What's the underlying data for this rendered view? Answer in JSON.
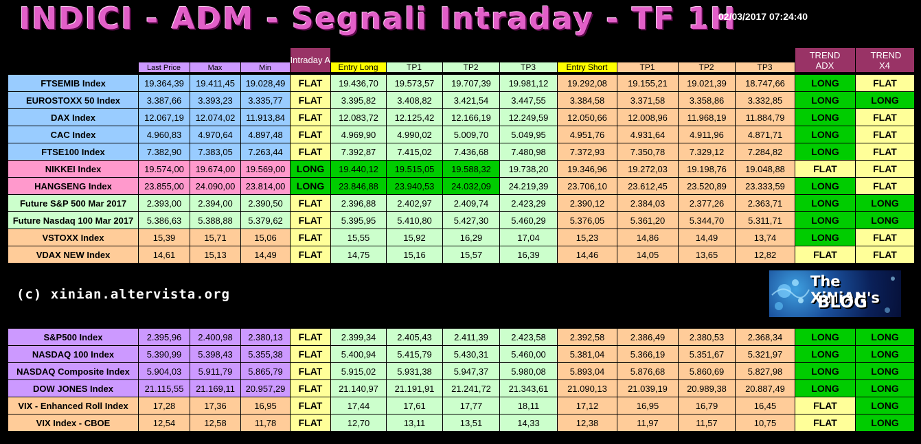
{
  "title": "INDICI - ADM - Segnali Intraday - TF 1H",
  "datetime": "02/03/2017 07:24:40",
  "credit": "(c) xinian.altervista.org",
  "logo": {
    "line1": "The XiNiAN's",
    "line2": "BLOG"
  },
  "headers": {
    "last_price": "Last Price",
    "max": "Max",
    "min": "Min",
    "intraday_adm": "Intraday ADM",
    "entry_long": "Entry Long",
    "tp1_long": "TP1",
    "tp2_long": "TP2",
    "tp3_long": "TP3",
    "entry_short": "Entry Short",
    "tp1_short": "TP1",
    "tp2_short": "TP2",
    "tp3_short": "TP3",
    "trend_adx": "TREND ADX",
    "trend_x4": "TREND X4"
  },
  "colors": {
    "blue": "#99ccff",
    "pink": "#ff99cc",
    "green_light": "#ccffcc",
    "orange": "#ffcc99",
    "purple": "#cc99ff",
    "flat_yellow": "#ffff99",
    "long_green": "#00cc00",
    "header_maroon": "#993366",
    "header_yellow": "#ffff00"
  },
  "table1": [
    {
      "name": "FTSEMIB Index",
      "cat": "blue",
      "last": "19.364,39",
      "max": "19.411,45",
      "min": "19.028,49",
      "adm": "FLAT",
      "el": "19.436,70",
      "ltp1": "19.573,57",
      "ltp2": "19.707,39",
      "ltp3": "19.981,12",
      "es": "19.292,08",
      "stp1": "19.155,21",
      "stp2": "19.021,39",
      "stp3": "18.747,66",
      "adx": "LONG",
      "x4": "FLAT"
    },
    {
      "name": "EUROSTOXX 50 Index",
      "cat": "blue",
      "last": "3.387,66",
      "max": "3.393,23",
      "min": "3.335,77",
      "adm": "FLAT",
      "el": "3.395,82",
      "ltp1": "3.408,82",
      "ltp2": "3.421,54",
      "ltp3": "3.447,55",
      "es": "3.384,58",
      "stp1": "3.371,58",
      "stp2": "3.358,86",
      "stp3": "3.332,85",
      "adx": "LONG",
      "x4": "LONG"
    },
    {
      "name": "DAX Index",
      "cat": "blue",
      "last": "12.067,19",
      "max": "12.074,02",
      "min": "11.913,84",
      "adm": "FLAT",
      "el": "12.083,72",
      "ltp1": "12.125,42",
      "ltp2": "12.166,19",
      "ltp3": "12.249,59",
      "es": "12.050,66",
      "stp1": "12.008,96",
      "stp2": "11.968,19",
      "stp3": "11.884,79",
      "adx": "LONG",
      "x4": "FLAT"
    },
    {
      "name": "CAC Index",
      "cat": "blue",
      "last": "4.960,83",
      "max": "4.970,64",
      "min": "4.897,48",
      "adm": "FLAT",
      "el": "4.969,90",
      "ltp1": "4.990,02",
      "ltp2": "5.009,70",
      "ltp3": "5.049,95",
      "es": "4.951,76",
      "stp1": "4.931,64",
      "stp2": "4.911,96",
      "stp3": "4.871,71",
      "adx": "LONG",
      "x4": "FLAT"
    },
    {
      "name": "FTSE100 Index",
      "cat": "blue",
      "last": "7.382,90",
      "max": "7.383,05",
      "min": "7.263,44",
      "adm": "FLAT",
      "el": "7.392,87",
      "ltp1": "7.415,02",
      "ltp2": "7.436,68",
      "ltp3": "7.480,98",
      "es": "7.372,93",
      "stp1": "7.350,78",
      "stp2": "7.329,12",
      "stp3": "7.284,82",
      "adx": "LONG",
      "x4": "FLAT"
    },
    {
      "name": "NIKKEI Index",
      "cat": "pink",
      "last": "19.574,00",
      "max": "19.674,00",
      "min": "19.569,00",
      "adm": "LONG",
      "el": "19.440,12",
      "ltp1": "19.515,05",
      "ltp2": "19.588,32",
      "ltp3": "19.738,20",
      "es": "19.346,96",
      "stp1": "19.272,03",
      "stp2": "19.198,76",
      "stp3": "19.048,88",
      "adx": "FLAT",
      "x4": "FLAT",
      "hl": [
        0,
        1,
        2
      ]
    },
    {
      "name": "HANGSENG Index",
      "cat": "pink",
      "last": "23.855,00",
      "max": "24.090,00",
      "min": "23.814,00",
      "adm": "LONG",
      "el": "23.846,88",
      "ltp1": "23.940,53",
      "ltp2": "24.032,09",
      "ltp3": "24.219,39",
      "es": "23.706,10",
      "stp1": "23.612,45",
      "stp2": "23.520,89",
      "stp3": "23.333,59",
      "adx": "LONG",
      "x4": "FLAT",
      "hl": [
        0,
        1,
        2
      ]
    },
    {
      "name": "Future S&P 500 Mar 2017",
      "cat": "green_light",
      "last": "2.393,00",
      "max": "2.394,00",
      "min": "2.390,50",
      "adm": "FLAT",
      "el": "2.396,88",
      "ltp1": "2.402,97",
      "ltp2": "2.409,74",
      "ltp3": "2.423,29",
      "es": "2.390,12",
      "stp1": "2.384,03",
      "stp2": "2.377,26",
      "stp3": "2.363,71",
      "adx": "LONG",
      "x4": "LONG"
    },
    {
      "name": "Future Nasdaq 100 Mar 2017",
      "cat": "green_light",
      "last": "5.386,63",
      "max": "5.388,88",
      "min": "5.379,62",
      "adm": "FLAT",
      "el": "5.395,95",
      "ltp1": "5.410,80",
      "ltp2": "5.427,30",
      "ltp3": "5.460,29",
      "es": "5.376,05",
      "stp1": "5.361,20",
      "stp2": "5.344,70",
      "stp3": "5.311,71",
      "adx": "LONG",
      "x4": "LONG"
    },
    {
      "name": "VSTOXX Index",
      "cat": "orange",
      "last": "15,39",
      "max": "15,71",
      "min": "15,06",
      "adm": "FLAT",
      "el": "15,55",
      "ltp1": "15,92",
      "ltp2": "16,29",
      "ltp3": "17,04",
      "es": "15,23",
      "stp1": "14,86",
      "stp2": "14,49",
      "stp3": "13,74",
      "adx": "LONG",
      "x4": "FLAT"
    },
    {
      "name": "VDAX NEW Index",
      "cat": "orange",
      "last": "14,61",
      "max": "15,13",
      "min": "14,49",
      "adm": "FLAT",
      "el": "14,75",
      "ltp1": "15,16",
      "ltp2": "15,57",
      "ltp3": "16,39",
      "es": "14,46",
      "stp1": "14,05",
      "stp2": "13,65",
      "stp3": "12,82",
      "adx": "FLAT",
      "x4": "FLAT"
    }
  ],
  "table2": [
    {
      "name": "S&P500 Index",
      "cat": "purple",
      "last": "2.395,96",
      "max": "2.400,98",
      "min": "2.380,13",
      "adm": "FLAT",
      "el": "2.399,34",
      "ltp1": "2.405,43",
      "ltp2": "2.411,39",
      "ltp3": "2.423,58",
      "es": "2.392,58",
      "stp1": "2.386,49",
      "stp2": "2.380,53",
      "stp3": "2.368,34",
      "adx": "LONG",
      "x4": "LONG"
    },
    {
      "name": "NASDAQ 100 Index",
      "cat": "purple",
      "last": "5.390,99",
      "max": "5.398,43",
      "min": "5.355,38",
      "adm": "FLAT",
      "el": "5.400,94",
      "ltp1": "5.415,79",
      "ltp2": "5.430,31",
      "ltp3": "5.460,00",
      "es": "5.381,04",
      "stp1": "5.366,19",
      "stp2": "5.351,67",
      "stp3": "5.321,97",
      "adx": "LONG",
      "x4": "LONG"
    },
    {
      "name": "NASDAQ Composite Index",
      "cat": "purple",
      "last": "5.904,03",
      "max": "5.911,79",
      "min": "5.865,79",
      "adm": "FLAT",
      "el": "5.915,02",
      "ltp1": "5.931,38",
      "ltp2": "5.947,37",
      "ltp3": "5.980,08",
      "es": "5.893,04",
      "stp1": "5.876,68",
      "stp2": "5.860,69",
      "stp3": "5.827,98",
      "adx": "LONG",
      "x4": "LONG"
    },
    {
      "name": "DOW JONES Index",
      "cat": "purple",
      "last": "21.115,55",
      "max": "21.169,11",
      "min": "20.957,29",
      "adm": "FLAT",
      "el": "21.140,97",
      "ltp1": "21.191,91",
      "ltp2": "21.241,72",
      "ltp3": "21.343,61",
      "es": "21.090,13",
      "stp1": "21.039,19",
      "stp2": "20.989,38",
      "stp3": "20.887,49",
      "adx": "LONG",
      "x4": "LONG"
    },
    {
      "name": "VIX - Enhanced Roll Index",
      "cat": "orange",
      "last": "17,28",
      "max": "17,36",
      "min": "16,95",
      "adm": "FLAT",
      "el": "17,44",
      "ltp1": "17,61",
      "ltp2": "17,77",
      "ltp3": "18,11",
      "es": "17,12",
      "stp1": "16,95",
      "stp2": "16,79",
      "stp3": "16,45",
      "adx": "FLAT",
      "x4": "LONG"
    },
    {
      "name": "VIX Index - CBOE",
      "cat": "orange",
      "last": "12,54",
      "max": "12,58",
      "min": "11,78",
      "adm": "FLAT",
      "el": "12,70",
      "ltp1": "13,11",
      "ltp2": "13,51",
      "ltp3": "14,33",
      "es": "12,38",
      "stp1": "11,97",
      "stp2": "11,57",
      "stp3": "10,75",
      "adx": "FLAT",
      "x4": "LONG"
    }
  ]
}
